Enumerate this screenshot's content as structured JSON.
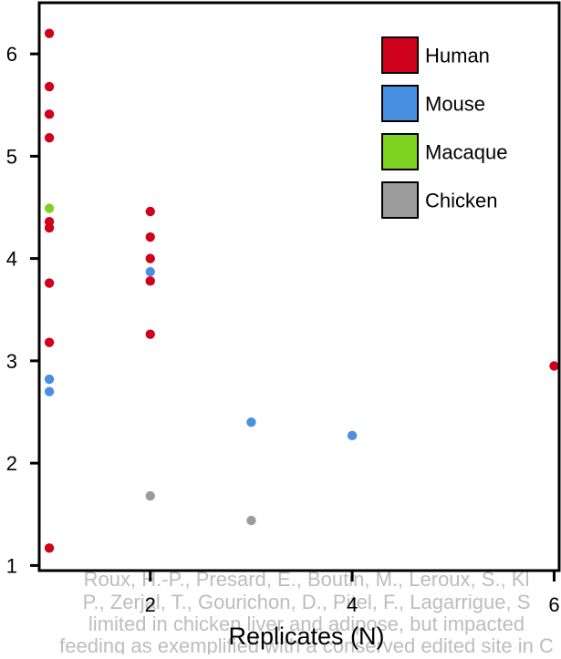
{
  "chart_data": {
    "type": "scatter",
    "xlabel": "Replicates (N)",
    "ylabel": "",
    "xlim": [
      0.9,
      6.05
    ],
    "ylim": [
      0.95,
      6.5
    ],
    "x_ticks": [
      2,
      4,
      6
    ],
    "y_ticks": [
      1,
      2,
      3,
      4,
      5,
      6
    ],
    "grid": false,
    "legend_position": "top-right",
    "series": [
      {
        "name": "Human",
        "color": "#d0021b",
        "points": [
          [
            1,
            6.2
          ],
          [
            1,
            5.68
          ],
          [
            1,
            5.41
          ],
          [
            1,
            5.18
          ],
          [
            1,
            4.36
          ],
          [
            1,
            4.3
          ],
          [
            1,
            3.76
          ],
          [
            1,
            3.18
          ],
          [
            1,
            1.17
          ],
          [
            2,
            4.46
          ],
          [
            2,
            4.21
          ],
          [
            2,
            4.0
          ],
          [
            2,
            3.78
          ],
          [
            2,
            3.26
          ],
          [
            6,
            2.95
          ]
        ]
      },
      {
        "name": "Mouse",
        "color": "#4a90e2",
        "points": [
          [
            1,
            2.82
          ],
          [
            1,
            2.7
          ],
          [
            2,
            3.87
          ],
          [
            3,
            2.4
          ],
          [
            4,
            2.27
          ]
        ]
      },
      {
        "name": "Macaque",
        "color": "#7ed321",
        "points": [
          [
            1,
            4.49
          ]
        ]
      },
      {
        "name": "Chicken",
        "color": "#9b9b9b",
        "points": [
          [
            2,
            1.68
          ],
          [
            3,
            1.44
          ]
        ]
      }
    ]
  },
  "watermark": {
    "lines": [
      "Roux, H.-P., Presard, E., Boutin, M., Leroux, S., Kl",
      "P., Zerjal, T., Gourichon, D., Pitel, F., Lagarrigue, S",
      "limited in chicken liver and adipose, but impacted",
      "feeding as exemplified with a conserved edited site in C"
    ],
    "color": "#bdbdbd"
  }
}
